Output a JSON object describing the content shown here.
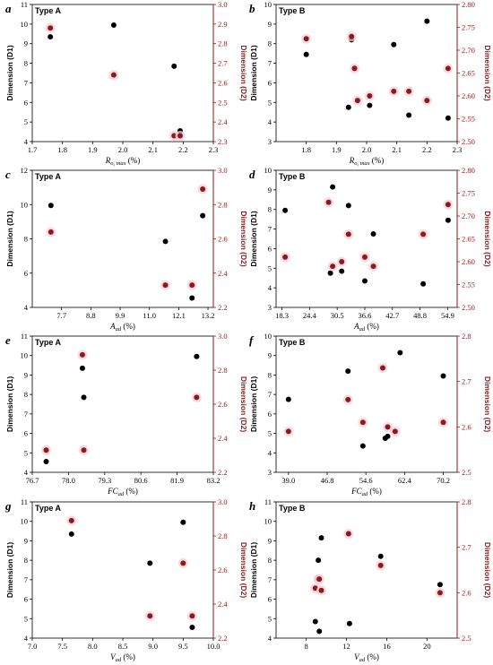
{
  "chart_data": [
    {
      "type": "scatter",
      "panel": "a",
      "type_label": "Type A",
      "xlabel_main": "R",
      "xlabel_sub": "o, max",
      "xlabel_unit": " (%)",
      "ylabel_left": "Dimension (D1)",
      "ylabel_right": "Dimension (D2)",
      "xlim": [
        1.7,
        2.3
      ],
      "xticks": [
        "1.7",
        "1.8",
        "1.9",
        "2.0",
        "2.1",
        "2.2",
        "2.3"
      ],
      "ylim_left": [
        4,
        11
      ],
      "yticks_left": [
        "4",
        "5",
        "6",
        "7",
        "8",
        "9",
        "10",
        "11"
      ],
      "ylim_right": [
        2.3,
        3.0
      ],
      "yticks_right": [
        "2.3",
        "2.4",
        "2.5",
        "2.6",
        "2.7",
        "2.8",
        "2.9",
        "3.0"
      ],
      "series": [
        {
          "axis": "left",
          "color": "#000000",
          "points": [
            [
              1.76,
              9.35
            ],
            [
              1.97,
              9.95
            ],
            [
              2.17,
              7.85
            ],
            [
              2.19,
              4.55
            ],
            [
              2.19,
              4.3
            ]
          ]
        },
        {
          "axis": "right",
          "color": "#8b1a1a",
          "points": [
            [
              1.76,
              2.88
            ],
            [
              1.97,
              2.64
            ],
            [
              2.17,
              2.33
            ],
            [
              2.19,
              2.33
            ]
          ]
        }
      ]
    },
    {
      "type": "scatter",
      "panel": "b",
      "type_label": "Type B",
      "xlabel_main": "R",
      "xlabel_sub": "o, max",
      "xlabel_unit": " (%)",
      "ylabel_left": "Dimension (D1)",
      "ylabel_right": "Dimension (D2)",
      "xlim": [
        1.7,
        2.3
      ],
      "xticks": [
        "1.8",
        "1.9",
        "2.0",
        "2.1",
        "2.2",
        "2.3"
      ],
      "ylim_left": [
        3,
        10
      ],
      "yticks_left": [
        "3",
        "4",
        "5",
        "6",
        "7",
        "8",
        "9",
        "10"
      ],
      "ylim_right": [
        2.5,
        2.8
      ],
      "yticks_right": [
        "2.50",
        "2.55",
        "2.60",
        "2.65",
        "2.70",
        "2.75",
        "2.80"
      ],
      "series": [
        {
          "axis": "left",
          "color": "#000000",
          "points": [
            [
              1.8,
              7.45
            ],
            [
              1.95,
              8.2
            ],
            [
              1.96,
              6.75
            ],
            [
              2.01,
              4.85
            ],
            [
              2.09,
              7.95
            ],
            [
              2.14,
              4.35
            ],
            [
              2.2,
              9.15
            ],
            [
              2.27,
              4.2
            ],
            [
              1.94,
              4.75
            ]
          ]
        },
        {
          "axis": "right",
          "color": "#8b1a1a",
          "points": [
            [
              1.8,
              2.725
            ],
            [
              1.95,
              2.73
            ],
            [
              1.96,
              2.66
            ],
            [
              1.97,
              2.59
            ],
            [
              2.01,
              2.6
            ],
            [
              2.09,
              2.61
            ],
            [
              2.14,
              2.61
            ],
            [
              2.2,
              2.59
            ],
            [
              2.27,
              2.66
            ]
          ]
        }
      ]
    },
    {
      "type": "scatter",
      "panel": "c",
      "type_label": "Type A",
      "xlabel_main": "A",
      "xlabel_sub": "ad",
      "xlabel_unit": " (%)",
      "ylabel_left": "Dimension (D1)",
      "ylabel_right": "Dimension (D2)",
      "xlim": [
        6.6,
        13.4
      ],
      "xticks": [
        "7.7",
        "8.8",
        "9.9",
        "11.0",
        "12.1",
        "13.2"
      ],
      "ylim_left": [
        4,
        12
      ],
      "yticks_left": [
        "4",
        "6",
        "8",
        "10",
        "12"
      ],
      "ylim_right": [
        2.2,
        3.0
      ],
      "yticks_right": [
        "2.2",
        "2.4",
        "2.6",
        "2.8",
        "3.0"
      ],
      "series": [
        {
          "axis": "left",
          "color": "#000000",
          "points": [
            [
              7.3,
              9.95
            ],
            [
              11.6,
              7.85
            ],
            [
              12.6,
              4.55
            ],
            [
              13.0,
              9.35
            ]
          ]
        },
        {
          "axis": "right",
          "color": "#8b1a1a",
          "points": [
            [
              7.3,
              2.64
            ],
            [
              11.6,
              2.33
            ],
            [
              12.6,
              2.33
            ],
            [
              13.0,
              2.89
            ]
          ]
        }
      ]
    },
    {
      "type": "scatter",
      "panel": "d",
      "type_label": "Type B",
      "xlabel_main": "A",
      "xlabel_sub": "ad",
      "xlabel_unit": " (%)",
      "ylabel_left": "Dimension (D1)",
      "ylabel_right": "Dimension (D2)",
      "xlim": [
        17.0,
        57.0
      ],
      "xticks": [
        "18.3",
        "24.4",
        "30.5",
        "36.6",
        "42.7",
        "48.8",
        "54.9"
      ],
      "ylim_left": [
        3,
        10
      ],
      "yticks_left": [
        "3",
        "4",
        "5",
        "6",
        "7",
        "8",
        "9",
        "10"
      ],
      "ylim_right": [
        2.5,
        2.8
      ],
      "yticks_right": [
        "2.50",
        "2.55",
        "2.60",
        "2.65",
        "2.70",
        "2.75",
        "2.80"
      ],
      "series": [
        {
          "axis": "left",
          "color": "#000000",
          "points": [
            [
              19.0,
              7.95
            ],
            [
              29.5,
              9.15
            ],
            [
              29.0,
              4.75
            ],
            [
              31.5,
              4.85
            ],
            [
              33.0,
              8.2
            ],
            [
              36.6,
              4.35
            ],
            [
              38.5,
              6.75
            ],
            [
              49.5,
              4.2
            ],
            [
              55.0,
              7.45
            ]
          ]
        },
        {
          "axis": "right",
          "color": "#8b1a1a",
          "points": [
            [
              19.0,
              2.61
            ],
            [
              28.6,
              2.73
            ],
            [
              29.5,
              2.59
            ],
            [
              31.5,
              2.6
            ],
            [
              33.0,
              2.66
            ],
            [
              36.6,
              2.61
            ],
            [
              38.5,
              2.59
            ],
            [
              49.5,
              2.66
            ],
            [
              55.0,
              2.725
            ]
          ]
        }
      ]
    },
    {
      "type": "scatter",
      "panel": "e",
      "type_label": "Type A",
      "xlabel_main": "FC",
      "xlabel_sub": "ad",
      "xlabel_unit": " (%)",
      "ylabel_left": "Dimension (D1)",
      "ylabel_right": "Dimension (D2)",
      "xlim": [
        76.7,
        83.2
      ],
      "xticks": [
        "76.7",
        "78.0",
        "79.3",
        "80.6",
        "81.9",
        "83.2"
      ],
      "ylim_left": [
        4,
        11
      ],
      "yticks_left": [
        "4",
        "5",
        "6",
        "7",
        "8",
        "9",
        "10",
        "11"
      ],
      "ylim_right": [
        2.2,
        3.0
      ],
      "yticks_right": [
        "2.2",
        "2.4",
        "2.6",
        "2.8",
        "3.0"
      ],
      "series": [
        {
          "axis": "left",
          "color": "#000000",
          "points": [
            [
              77.2,
              4.55
            ],
            [
              78.5,
              9.35
            ],
            [
              78.55,
              7.85
            ],
            [
              82.6,
              9.95
            ]
          ]
        },
        {
          "axis": "right",
          "color": "#8b1a1a",
          "points": [
            [
              77.2,
              2.33
            ],
            [
              78.5,
              2.89
            ],
            [
              78.55,
              2.33
            ],
            [
              82.6,
              2.64
            ]
          ]
        }
      ]
    },
    {
      "type": "scatter",
      "panel": "f",
      "type_label": "Type B",
      "xlabel_main": "FC",
      "xlabel_sub": "ad",
      "xlabel_unit": " (%)",
      "ylabel_left": "Dimension (D1)",
      "ylabel_right": "Dimension (D2)",
      "xlim": [
        36.5,
        73.0
      ],
      "xticks": [
        "39.0",
        "46.8",
        "54.6",
        "62.4",
        "70.2"
      ],
      "ylim_left": [
        3,
        10
      ],
      "yticks_left": [
        "3",
        "4",
        "5",
        "6",
        "7",
        "8",
        "9",
        "10"
      ],
      "ylim_right": [
        2.5,
        2.8
      ],
      "yticks_right": [
        "2.5",
        "2.6",
        "2.7",
        "2.8"
      ],
      "series": [
        {
          "axis": "left",
          "color": "#000000",
          "points": [
            [
              39.0,
              6.75
            ],
            [
              51.0,
              8.2
            ],
            [
              54.0,
              4.35
            ],
            [
              58.5,
              4.75
            ],
            [
              59.0,
              4.85
            ],
            [
              61.5,
              9.15
            ],
            [
              70.2,
              7.95
            ]
          ]
        },
        {
          "axis": "right",
          "color": "#8b1a1a",
          "points": [
            [
              39.0,
              2.59
            ],
            [
              51.0,
              2.66
            ],
            [
              54.0,
              2.61
            ],
            [
              58.0,
              2.73
            ],
            [
              59.0,
              2.6
            ],
            [
              60.5,
              2.59
            ],
            [
              70.2,
              2.61
            ]
          ]
        }
      ]
    },
    {
      "type": "scatter",
      "panel": "g",
      "type_label": "Type A",
      "xlabel_main": "V",
      "xlabel_sub": "ad",
      "xlabel_unit": " (%)",
      "ylabel_left": "Dimension (D1)",
      "ylabel_right": "Dimension (D2)",
      "xlim": [
        7.0,
        10.0
      ],
      "xticks": [
        "7.0",
        "7.5",
        "8.0",
        "8.5",
        "9.0",
        "9.5",
        "10.0"
      ],
      "ylim_left": [
        4,
        11
      ],
      "yticks_left": [
        "4",
        "5",
        "6",
        "7",
        "8",
        "9",
        "10",
        "11"
      ],
      "ylim_right": [
        2.2,
        3.0
      ],
      "yticks_right": [
        "2.2",
        "2.4",
        "2.6",
        "2.8",
        "3.0"
      ],
      "series": [
        {
          "axis": "left",
          "color": "#000000",
          "points": [
            [
              7.65,
              9.35
            ],
            [
              8.95,
              7.85
            ],
            [
              9.5,
              9.95
            ],
            [
              9.65,
              4.55
            ]
          ]
        },
        {
          "axis": "right",
          "color": "#8b1a1a",
          "points": [
            [
              7.65,
              2.89
            ],
            [
              8.95,
              2.33
            ],
            [
              9.5,
              2.64
            ],
            [
              9.65,
              2.33
            ]
          ]
        }
      ]
    },
    {
      "type": "scatter",
      "panel": "h",
      "type_label": "Type B",
      "xlabel_main": "V",
      "xlabel_sub": "ad",
      "xlabel_unit": " (%)",
      "ylabel_left": "Dimension (D1)",
      "ylabel_right": "Dimension (D2)",
      "xlim": [
        5.0,
        23.0
      ],
      "xticks": [
        "8",
        "12",
        "16",
        "20"
      ],
      "ylim_left": [
        4,
        11
      ],
      "yticks_left": [
        "4",
        "5",
        "6",
        "7",
        "8",
        "9",
        "10",
        "11"
      ],
      "ylim_right": [
        2.5,
        2.8
      ],
      "yticks_right": [
        "2.5",
        "2.6",
        "2.7",
        "2.8"
      ],
      "series": [
        {
          "axis": "left",
          "color": "#000000",
          "points": [
            [
              8.9,
              4.85
            ],
            [
              9.2,
              8.0
            ],
            [
              9.3,
              4.35
            ],
            [
              9.5,
              9.15
            ],
            [
              12.3,
              4.75
            ],
            [
              15.4,
              8.2
            ],
            [
              21.3,
              6.75
            ]
          ]
        },
        {
          "axis": "right",
          "color": "#8b1a1a",
          "points": [
            [
              8.9,
              2.61
            ],
            [
              9.2,
              2.63
            ],
            [
              9.3,
              2.63
            ],
            [
              9.5,
              2.605
            ],
            [
              12.2,
              2.73
            ],
            [
              15.4,
              2.66
            ],
            [
              21.3,
              2.6
            ]
          ]
        }
      ]
    }
  ]
}
